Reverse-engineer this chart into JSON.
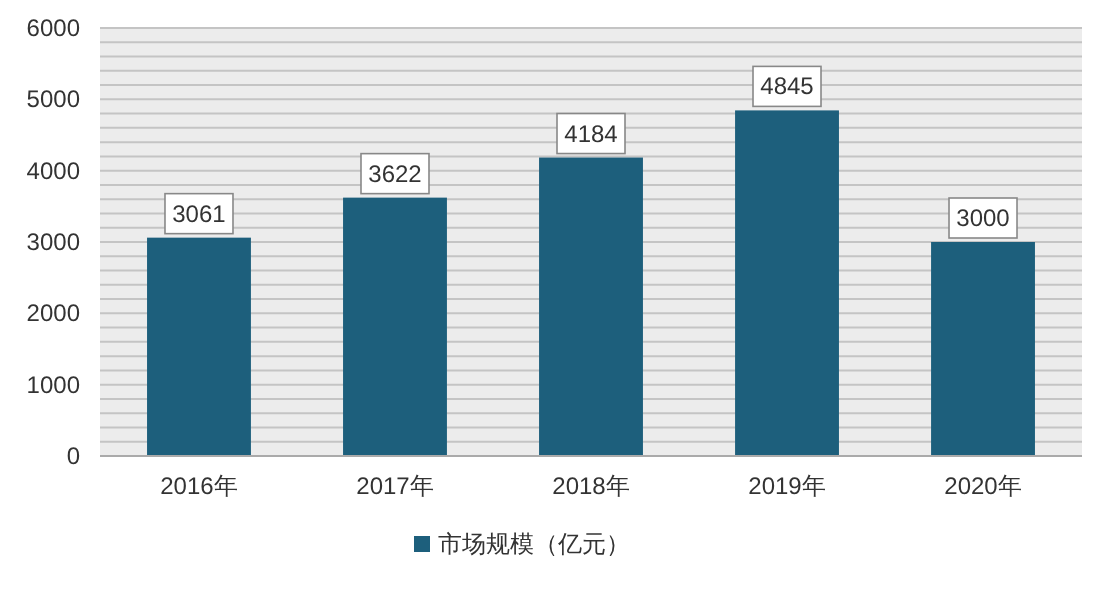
{
  "chart_data": {
    "type": "bar",
    "categories": [
      "2016年",
      "2017年",
      "2018年",
      "2019年",
      "2020年"
    ],
    "series": [
      {
        "name": "市场规模（亿元）",
        "color": "#1d5f7c",
        "values": [
          3061,
          3622,
          4184,
          4845,
          3000
        ]
      }
    ],
    "ylim": [
      0,
      6000
    ],
    "yticks": [
      0,
      {
        "value": 200,
        "label": null
      },
      {
        "value": 400,
        "label": null
      },
      {
        "value": 600,
        "label": null
      },
      {
        "value": 800,
        "label": null
      },
      1000,
      {
        "value": 1200,
        "label": null
      },
      {
        "value": 1400,
        "label": null
      },
      {
        "value": 1600,
        "label": null
      },
      {
        "value": 1800,
        "label": null
      },
      2000,
      {
        "value": 2200,
        "label": null
      },
      {
        "value": 2400,
        "label": null
      },
      {
        "value": 2600,
        "label": null
      },
      {
        "value": 2800,
        "label": null
      },
      3000,
      {
        "value": 3200,
        "label": null
      },
      {
        "value": 3400,
        "label": null
      },
      {
        "value": 3600,
        "label": null
      },
      {
        "value": 3800,
        "label": null
      },
      4000,
      {
        "value": 4200,
        "label": null
      },
      {
        "value": 4400,
        "label": null
      },
      {
        "value": 4600,
        "label": null
      },
      {
        "value": 4800,
        "label": null
      },
      5000,
      {
        "value": 5200,
        "label": null
      },
      {
        "value": 5400,
        "label": null
      },
      {
        "value": 5600,
        "label": null
      },
      {
        "value": 5800,
        "label": null
      },
      6000
    ],
    "grid": "y",
    "legend": "bottom",
    "data_labels": true
  }
}
